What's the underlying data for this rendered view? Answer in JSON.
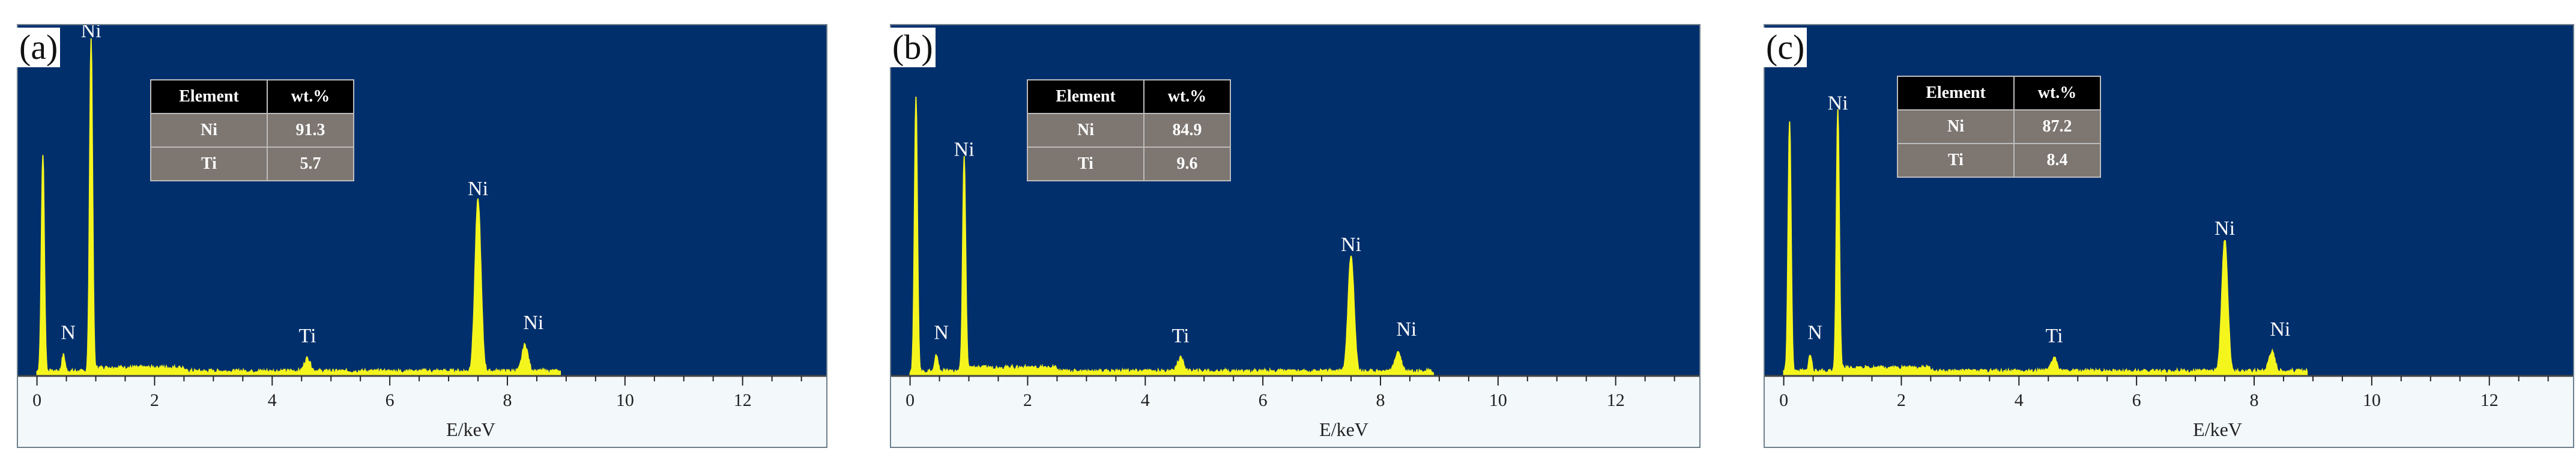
{
  "chart_data": [
    {
      "type": "line",
      "panel_label": "(a)",
      "xlabel": "E/keV",
      "xlim": [
        -0.2,
        13.3
      ],
      "ticks": [
        "0",
        "2",
        "4",
        "6",
        "8",
        "10",
        "12"
      ],
      "peaks": [
        {
          "label": "",
          "x": 0.1,
          "height": 0.66
        },
        {
          "label": "N",
          "x": 0.45,
          "height": 0.05
        },
        {
          "label": "Ni",
          "x": 0.92,
          "height": 1.0
        },
        {
          "label": "Ti",
          "x": 4.6,
          "height": 0.04
        },
        {
          "label": "Ni",
          "x": 7.5,
          "height": 0.52
        },
        {
          "label": "Ni",
          "x": 8.3,
          "height": 0.08
        }
      ],
      "table": {
        "headers": [
          "Element",
          "wt.%"
        ],
        "rows": [
          [
            "Ni",
            "91.3"
          ],
          [
            "Ti",
            "5.7"
          ]
        ]
      }
    },
    {
      "type": "line",
      "panel_label": "(b)",
      "xlabel": "E/keV",
      "xlim": [
        -0.2,
        13.3
      ],
      "ticks": [
        "0",
        "2",
        "4",
        "6",
        "8",
        "10",
        "12"
      ],
      "peaks": [
        {
          "label": "",
          "x": 0.1,
          "height": 0.83
        },
        {
          "label": "N",
          "x": 0.45,
          "height": 0.05
        },
        {
          "label": "Ni",
          "x": 0.92,
          "height": 0.64
        },
        {
          "label": "Ti",
          "x": 4.6,
          "height": 0.04
        },
        {
          "label": "Ni",
          "x": 7.5,
          "height": 0.35
        },
        {
          "label": "Ni",
          "x": 8.3,
          "height": 0.06
        }
      ],
      "table": {
        "headers": [
          "Element",
          "wt.%"
        ],
        "rows": [
          [
            "Ni",
            "84.9"
          ],
          [
            "Ti",
            "9.6"
          ]
        ]
      }
    },
    {
      "type": "line",
      "panel_label": "(c)",
      "xlabel": "E/keV",
      "xlim": [
        -0.2,
        13.3
      ],
      "ticks": [
        "0",
        "2",
        "4",
        "6",
        "8",
        "10",
        "12"
      ],
      "peaks": [
        {
          "label": "",
          "x": 0.1,
          "height": 0.76
        },
        {
          "label": "N",
          "x": 0.45,
          "height": 0.05
        },
        {
          "label": "Ni",
          "x": 0.92,
          "height": 0.78
        },
        {
          "label": "Ti",
          "x": 4.6,
          "height": 0.04
        },
        {
          "label": "Ni",
          "x": 7.5,
          "height": 0.4
        },
        {
          "label": "Ni",
          "x": 8.3,
          "height": 0.06
        }
      ],
      "table": {
        "headers": [
          "Element",
          "wt.%"
        ],
        "rows": [
          [
            "Ni",
            "87.2"
          ],
          [
            "Ti",
            "8.4"
          ]
        ]
      }
    }
  ],
  "colors": {
    "plot_background": "#002f6c",
    "spectrum": "#f5f51e",
    "table_header": "#000000",
    "table_cell": "#7d7671"
  }
}
